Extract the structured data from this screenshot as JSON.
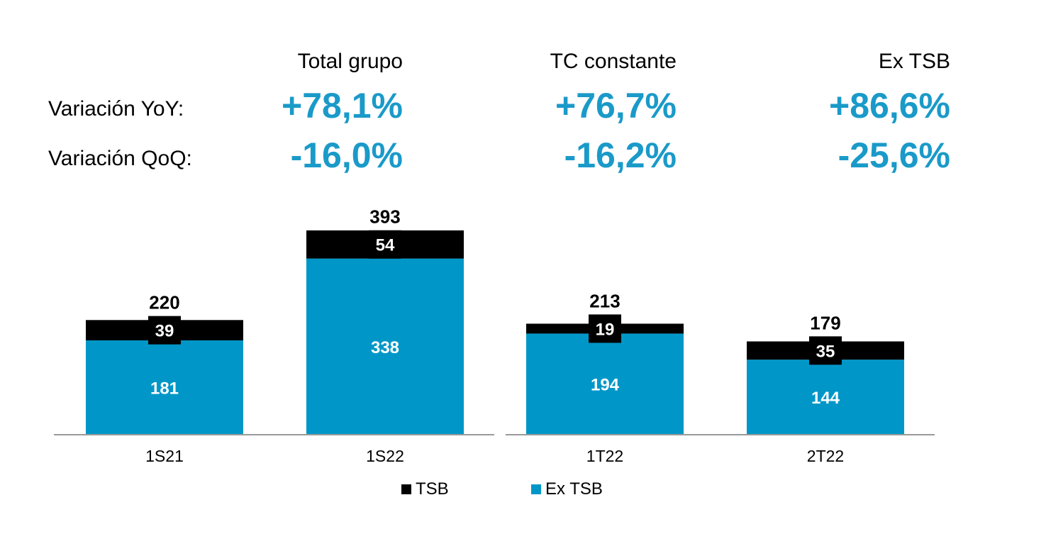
{
  "header": {
    "columns": [
      "Total grupo",
      "TC constante",
      "Ex TSB"
    ]
  },
  "metrics": [
    {
      "label": "Variación YoY:",
      "values": [
        "+78,1%",
        "+76,7%",
        "+86,6%"
      ]
    },
    {
      "label": "Variación QoQ:",
      "values": [
        "-16,0%",
        "-16,2%",
        "-25,6%"
      ]
    }
  ],
  "colors": {
    "ex_tsb": "#0097c8",
    "tsb": "#000000",
    "accent_text": "#1a9ac9"
  },
  "chart_data": {
    "type": "bar",
    "stacked": true,
    "categories": [
      "1S21",
      "1S22",
      "1T22",
      "2T22"
    ],
    "series": [
      {
        "name": "Ex TSB",
        "values": [
          181,
          338,
          194,
          144
        ],
        "color": "#0097c8"
      },
      {
        "name": "TSB",
        "values": [
          39,
          54,
          19,
          35
        ],
        "color": "#000000"
      }
    ],
    "totals": [
      220,
      393,
      213,
      179
    ],
    "legend": [
      "TSB",
      "Ex TSB"
    ],
    "legend_position": "bottom",
    "title": "",
    "xlabel": "",
    "ylabel": ""
  }
}
